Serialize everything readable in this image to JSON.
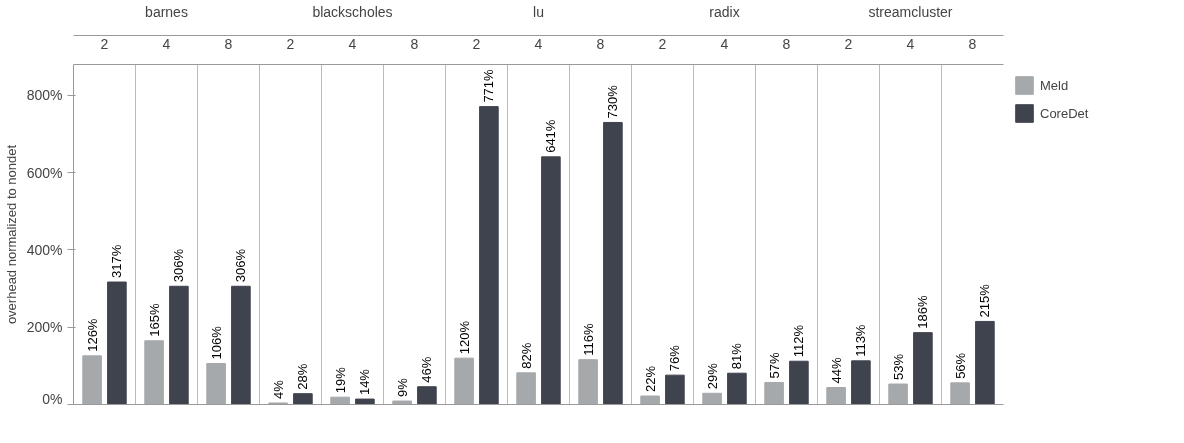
{
  "chart_data": {
    "type": "bar",
    "ylabel": "overhead normalized to nondet",
    "categories": [
      "2",
      "4",
      "8",
      "2",
      "4",
      "8",
      "2",
      "4",
      "8",
      "2",
      "4",
      "8",
      "2",
      "4",
      "8"
    ],
    "annotations": [
      "barnes",
      "blackscholes",
      "lu",
      "radix",
      "streamcluster"
    ],
    "series": [
      {
        "name": "Meld",
        "color": "#a6a9ac",
        "values": [
          126,
          165,
          106,
          4,
          19,
          9,
          120,
          82,
          116,
          22,
          29,
          57,
          44,
          53,
          56
        ]
      },
      {
        "name": "CoreDet",
        "color": "#3f434d",
        "values": [
          317,
          306,
          306,
          28,
          14,
          46,
          771,
          641,
          730,
          76,
          81,
          112,
          113,
          186,
          215
        ]
      }
    ],
    "ylim": [
      0,
      880
    ],
    "yticks": [
      {
        "value": 0,
        "label": "0%"
      },
      {
        "value": 200,
        "label": "200%"
      },
      {
        "value": 400,
        "label": "400%"
      },
      {
        "value": 600,
        "label": "600%"
      },
      {
        "value": 800,
        "label": "800%"
      }
    ],
    "value_labels": [
      [
        "126%",
        "165%",
        "106%",
        "4%",
        "19%",
        "9%",
        "120%",
        "82%",
        "116%",
        "22%",
        "29%",
        "57%",
        "44%",
        "53%",
        "56%"
      ],
      [
        "317%",
        "306%",
        "306%",
        "28%",
        "14%",
        "46%",
        "771%",
        "641%",
        "730%",
        "76%",
        "81%",
        "112%",
        "113%",
        "186%",
        "215%"
      ]
    ],
    "grid": "x",
    "legend": "top right"
  }
}
